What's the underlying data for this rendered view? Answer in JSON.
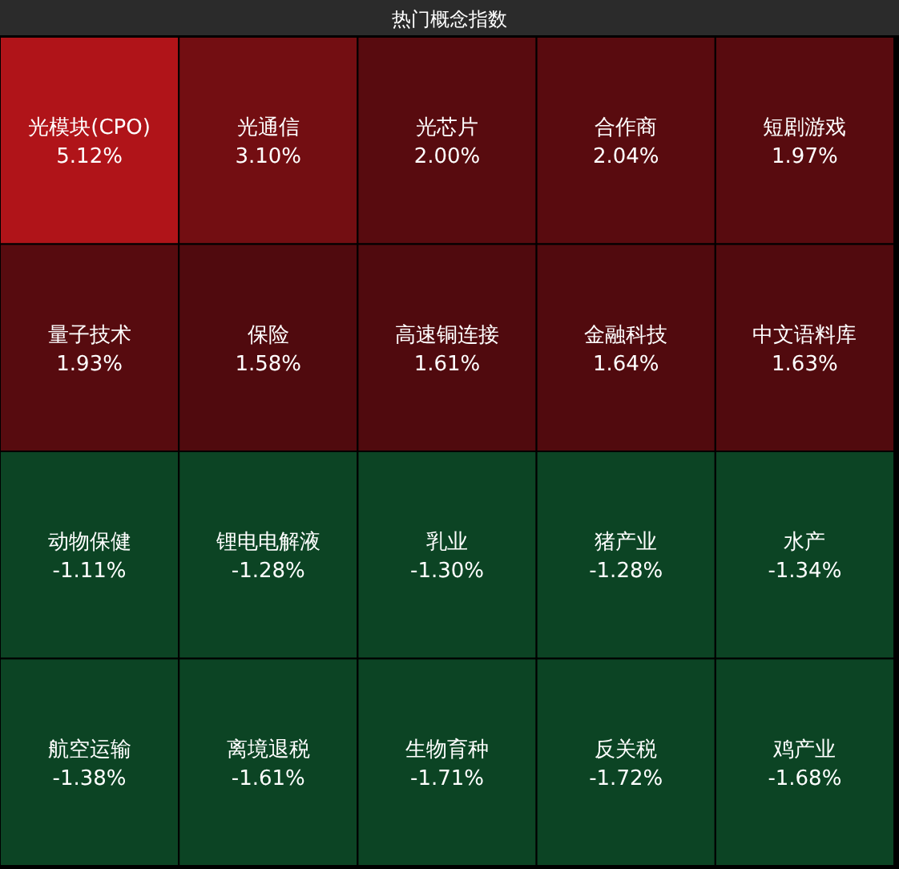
{
  "chart_data": {
    "type": "other",
    "title": "热门概念指数",
    "categories": [
      "光模块(CPO)",
      "光通信",
      "光芯片",
      "合作商",
      "短剧游戏",
      "量子技术",
      "保险",
      "高速铜连接",
      "金融科技",
      "中文语料库",
      "动物保健",
      "锂电电解液",
      "乳业",
      "猪产业",
      "水产",
      "航空运输",
      "离境退税",
      "生物育种",
      "反关税",
      "鸡产业"
    ],
    "values": [
      5.12,
      3.1,
      2.0,
      2.04,
      1.97,
      1.93,
      1.58,
      1.61,
      1.64,
      1.63,
      -1.11,
      -1.28,
      -1.3,
      -1.28,
      -1.34,
      -1.38,
      -1.61,
      -1.71,
      -1.72,
      -1.68
    ],
    "value_labels": [
      "5.12%",
      "3.10%",
      "2.00%",
      "2.04%",
      "1.97%",
      "1.93%",
      "1.58%",
      "1.61%",
      "1.64%",
      "1.63%",
      "-1.11%",
      "-1.28%",
      "-1.30%",
      "-1.28%",
      "-1.34%",
      "-1.38%",
      "-1.61%",
      "-1.71%",
      "-1.72%",
      "-1.68%"
    ]
  }
}
